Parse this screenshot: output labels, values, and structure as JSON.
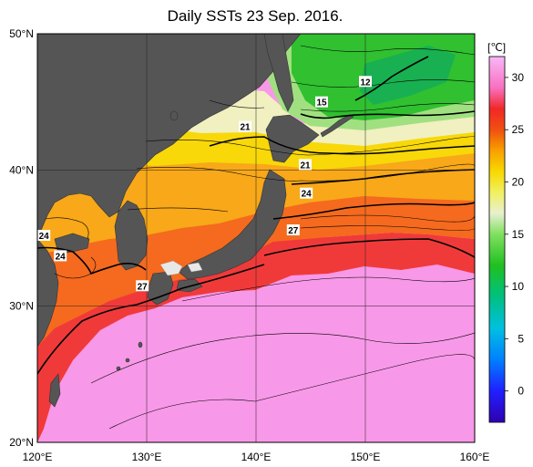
{
  "title": "Daily SSTs 23 Sep. 2016.",
  "map": {
    "lon_range": [
      120,
      160
    ],
    "lat_range": [
      20,
      50
    ],
    "x_ticks": [
      {
        "value": 120,
        "label": "120°E"
      },
      {
        "value": 130,
        "label": "130°E"
      },
      {
        "value": 140,
        "label": "140°E"
      },
      {
        "value": 150,
        "label": "150°E"
      },
      {
        "value": 160,
        "label": "160°E"
      }
    ],
    "y_ticks": [
      {
        "value": 20,
        "label": "20°N"
      },
      {
        "value": 30,
        "label": "30°N"
      },
      {
        "value": 40,
        "label": "40°N"
      },
      {
        "value": 50,
        "label": "50°N"
      }
    ],
    "land_color": "#555555",
    "contour_labels": [
      {
        "text": "12",
        "lon": 150.0,
        "lat": 46.5
      },
      {
        "text": "15",
        "lon": 146.0,
        "lat": 45.0
      },
      {
        "text": "21",
        "lon": 139.0,
        "lat": 43.2
      },
      {
        "text": "21",
        "lon": 144.5,
        "lat": 40.4
      },
      {
        "text": "24",
        "lon": 144.6,
        "lat": 38.3
      },
      {
        "text": "27",
        "lon": 143.4,
        "lat": 35.6
      },
      {
        "text": "24",
        "lon": 120.6,
        "lat": 35.2
      },
      {
        "text": "24",
        "lon": 122.1,
        "lat": 33.7
      },
      {
        "text": "27",
        "lon": 129.6,
        "lat": 31.5
      }
    ]
  },
  "colorbar": {
    "unit": "[℃]",
    "min": -3,
    "max": 32,
    "ticks": [
      {
        "value": 0,
        "label": "0"
      },
      {
        "value": 5,
        "label": "5"
      },
      {
        "value": 10,
        "label": "10"
      },
      {
        "value": 15,
        "label": "15"
      },
      {
        "value": 20,
        "label": "20"
      },
      {
        "value": 25,
        "label": "25"
      },
      {
        "value": 30,
        "label": "30"
      }
    ],
    "stops": [
      {
        "value": -3,
        "color": "#3000b0"
      },
      {
        "value": 0,
        "color": "#2020ff"
      },
      {
        "value": 3,
        "color": "#0080ff"
      },
      {
        "value": 6,
        "color": "#00c0e0"
      },
      {
        "value": 9,
        "color": "#00c080"
      },
      {
        "value": 12,
        "color": "#20c020"
      },
      {
        "value": 15,
        "color": "#80e060"
      },
      {
        "value": 17,
        "color": "#e8f0d0"
      },
      {
        "value": 19,
        "color": "#f0f060"
      },
      {
        "value": 21,
        "color": "#f8d800"
      },
      {
        "value": 23,
        "color": "#f8a000"
      },
      {
        "value": 25,
        "color": "#f05010"
      },
      {
        "value": 27,
        "color": "#f02828"
      },
      {
        "value": 29,
        "color": "#f870c0"
      },
      {
        "value": 32,
        "color": "#f8b8f8"
      }
    ]
  }
}
